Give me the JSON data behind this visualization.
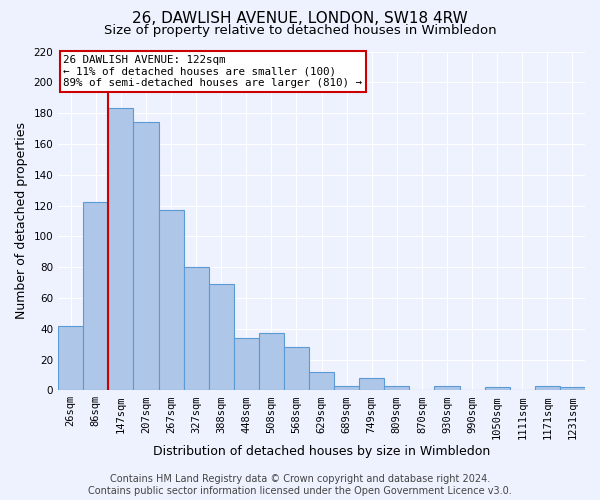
{
  "title": "26, DAWLISH AVENUE, LONDON, SW18 4RW",
  "subtitle": "Size of property relative to detached houses in Wimbledon",
  "xlabel": "Distribution of detached houses by size in Wimbledon",
  "ylabel": "Number of detached properties",
  "footer_line1": "Contains HM Land Registry data © Crown copyright and database right 2024.",
  "footer_line2": "Contains public sector information licensed under the Open Government Licence v3.0.",
  "bar_labels": [
    "26sqm",
    "86sqm",
    "147sqm",
    "207sqm",
    "267sqm",
    "327sqm",
    "388sqm",
    "448sqm",
    "508sqm",
    "568sqm",
    "629sqm",
    "689sqm",
    "749sqm",
    "809sqm",
    "870sqm",
    "930sqm",
    "990sqm",
    "1050sqm",
    "1111sqm",
    "1171sqm",
    "1231sqm"
  ],
  "bar_values": [
    42,
    122,
    183,
    174,
    117,
    80,
    69,
    34,
    37,
    28,
    12,
    3,
    8,
    3,
    0,
    3,
    0,
    2,
    0,
    3,
    2
  ],
  "bar_color": "#aec6e8",
  "bar_edge_color": "#5b9bd5",
  "property_line_label": "26 DAWLISH AVENUE: 122sqm",
  "annotation_line1": "← 11% of detached houses are smaller (100)",
  "annotation_line2": "89% of semi-detached houses are larger (810) →",
  "annotation_box_color": "#ffffff",
  "annotation_box_edge_color": "#cc0000",
  "vline_color": "#cc0000",
  "vline_x_index": 1.5,
  "ylim": [
    0,
    220
  ],
  "yticks": [
    0,
    20,
    40,
    60,
    80,
    100,
    120,
    140,
    160,
    180,
    200,
    220
  ],
  "bg_color": "#eef2ff",
  "plot_bg_color": "#eef2ff",
  "grid_color": "#ffffff",
  "title_fontsize": 11,
  "subtitle_fontsize": 9.5,
  "axis_label_fontsize": 9,
  "tick_fontsize": 7.5,
  "annotation_fontsize": 7.8,
  "footer_fontsize": 7
}
